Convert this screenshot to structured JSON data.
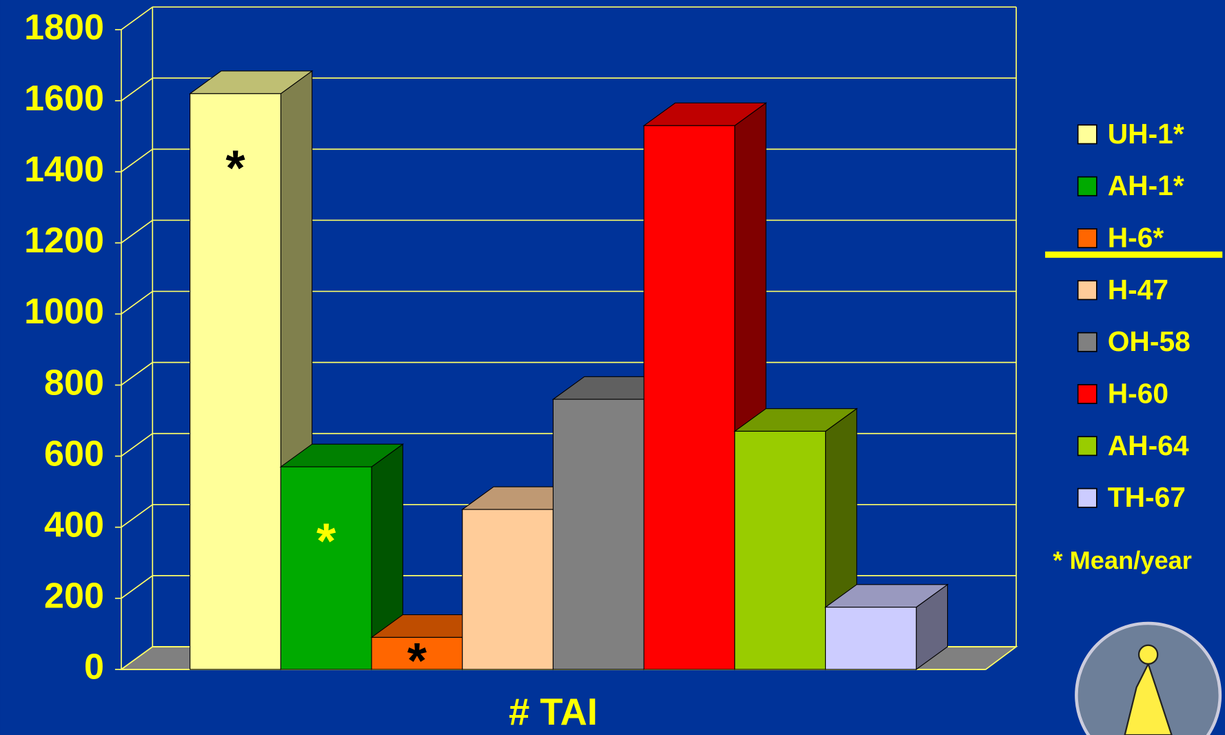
{
  "chart_data": {
    "type": "bar3d",
    "xlabel": "# TAI",
    "series": [
      {
        "name": "UH-1*",
        "color": "#ffff99",
        "values": [
          1620
        ]
      },
      {
        "name": "AH-1*",
        "color": "#00aa00",
        "values": [
          570
        ]
      },
      {
        "name": "H-6*",
        "color": "#ff6600",
        "values": [
          90
        ]
      },
      {
        "name": "H-47",
        "color": "#ffcc99",
        "values": [
          450
        ]
      },
      {
        "name": "OH-58",
        "color": "#808080",
        "values": [
          760
        ]
      },
      {
        "name": "H-60",
        "color": "#ff0000",
        "values": [
          1530
        ]
      },
      {
        "name": "AH-64",
        "color": "#99cc00",
        "values": [
          670
        ]
      },
      {
        "name": "TH-67",
        "color": "#ccccff",
        "values": [
          175
        ]
      }
    ],
    "annotations": [
      {
        "text": "*",
        "series": "UH-1*"
      },
      {
        "text": "*",
        "series": "AH-1*"
      },
      {
        "text": "*",
        "series": "H-6*"
      }
    ],
    "footnote": "* Mean/year",
    "ylim": [
      0,
      1800
    ],
    "yticks": [
      0,
      200,
      400,
      600,
      800,
      1000,
      1200,
      1400,
      1600,
      1800
    ],
    "grid": true,
    "legend": "right"
  }
}
